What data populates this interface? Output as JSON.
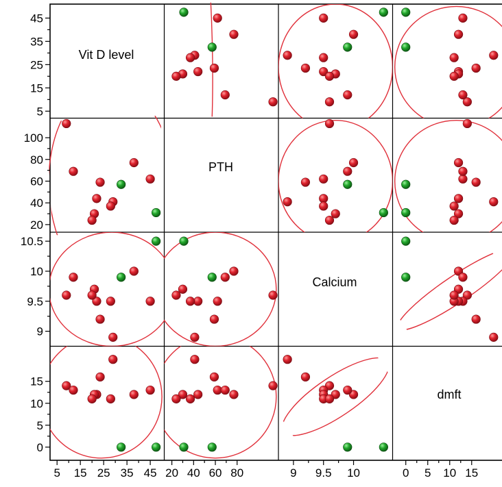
{
  "chart_data": {
    "type": "scatter",
    "title": "",
    "variables": [
      {
        "name": "Vit D level",
        "ticks": [
          "5",
          "15",
          "25",
          "35",
          "45"
        ],
        "x_ticks": [
          "5",
          "15",
          "25",
          "35",
          "45"
        ],
        "tick_values": [
          5,
          15,
          25,
          35,
          45
        ],
        "x_tick_values": [
          5,
          15,
          25,
          35,
          45
        ],
        "range": [
          2,
          51
        ]
      },
      {
        "name": "PTH",
        "ticks": [
          "20",
          "40",
          "60",
          "80",
          "100"
        ],
        "x_ticks": [
          "20",
          "40",
          "60",
          "80"
        ],
        "tick_values": [
          20,
          40,
          60,
          80,
          100
        ],
        "x_tick_values": [
          20,
          40,
          60,
          80
        ],
        "range": [
          13,
          118
        ]
      },
      {
        "name": "Calcium",
        "ticks": [
          "9",
          "9.5",
          "10",
          "10.5"
        ],
        "x_ticks": [
          "9",
          "9.5",
          "10"
        ],
        "tick_values": [
          9,
          9.5,
          10,
          10.5
        ],
        "x_tick_values": [
          9,
          9.5,
          10
        ],
        "range": [
          8.75,
          10.65
        ]
      },
      {
        "name": "dmft",
        "ticks": [
          "0",
          "5",
          "10",
          "15"
        ],
        "x_ticks": [
          "0",
          "5",
          "10",
          "15"
        ],
        "tick_values": [
          0,
          5,
          10,
          15
        ],
        "x_tick_values": [
          0,
          5,
          10,
          15
        ],
        "range": [
          -3,
          23
        ]
      }
    ],
    "points": [
      {
        "vitd": 47.5,
        "pth": 31,
        "calcium": 10.5,
        "dmft": 0,
        "group": "green"
      },
      {
        "vitd": 32.5,
        "pth": 57,
        "calcium": 9.9,
        "dmft": 0,
        "group": "green"
      },
      {
        "vitd": 9,
        "pth": 113,
        "calcium": 9.6,
        "dmft": 14,
        "group": "red"
      },
      {
        "vitd": 45,
        "pth": 62,
        "calcium": 9.5,
        "dmft": 13,
        "group": "red"
      },
      {
        "vitd": 38,
        "pth": 77,
        "calcium": 10.0,
        "dmft": 12,
        "group": "red"
      },
      {
        "vitd": 12,
        "pth": 69,
        "calcium": 9.9,
        "dmft": 13,
        "group": "red"
      },
      {
        "vitd": 23.5,
        "pth": 59,
        "calcium": 9.2,
        "dmft": 16,
        "group": "red"
      },
      {
        "vitd": 22,
        "pth": 44,
        "calcium": 9.5,
        "dmft": 12,
        "group": "red"
      },
      {
        "vitd": 29,
        "pth": 41,
        "calcium": 8.9,
        "dmft": 20,
        "group": "red"
      },
      {
        "vitd": 28,
        "pth": 37,
        "calcium": 9.5,
        "dmft": 11,
        "group": "red"
      },
      {
        "vitd": 21,
        "pth": 30,
        "calcium": 9.7,
        "dmft": 12,
        "group": "red"
      },
      {
        "vitd": 20,
        "pth": 24,
        "calcium": 9.6,
        "dmft": 11,
        "group": "red"
      }
    ],
    "point_colors": {
      "red": "#d8222e",
      "green": "#1e9e2a"
    },
    "ellipse_color": "#e0303a",
    "ellipses": [
      {
        "row": 0,
        "col": 1,
        "cx": 28.5,
        "cy": 54,
        "rx": 27,
        "ry": 96,
        "rot": -3
      },
      {
        "row": 0,
        "col": 2,
        "cx": 9.7,
        "cy": 24,
        "rx": 0.95,
        "ry": 27,
        "rot": 0
      },
      {
        "row": 0,
        "col": 3,
        "cx": 11.5,
        "cy": 24,
        "rx": 14,
        "ry": 26,
        "rot": 0
      },
      {
        "row": 1,
        "col": 0,
        "cx": 28.5,
        "cy": 54,
        "rx": 27,
        "ry": 96,
        "rot": -3
      },
      {
        "row": 1,
        "col": 2,
        "cx": 9.7,
        "cy": 60,
        "rx": 0.95,
        "ry": 56,
        "rot": 0
      },
      {
        "row": 1,
        "col": 3,
        "cx": 11.5,
        "cy": 60,
        "rx": 14,
        "ry": 56,
        "rot": 0
      },
      {
        "row": 2,
        "col": 0,
        "cx": 28.5,
        "cy": 9.7,
        "rx": 27,
        "ry": 0.95,
        "rot": 0
      },
      {
        "row": 2,
        "col": 1,
        "cx": 60,
        "cy": 9.7,
        "rx": 56,
        "ry": 0.95,
        "rot": 0
      },
      {
        "row": 2,
        "col": 3,
        "cx": 11.5,
        "cy": 9.7,
        "rx": 16,
        "ry": 0.22,
        "rot": -34
      },
      {
        "row": 3,
        "col": 0,
        "cx": 24,
        "cy": 11.5,
        "rx": 26,
        "ry": 14,
        "rot": 0
      },
      {
        "row": 3,
        "col": 1,
        "cx": 60,
        "cy": 11.5,
        "rx": 56,
        "ry": 14,
        "rot": 0
      },
      {
        "row": 3,
        "col": 2,
        "cx": 9.7,
        "cy": 11.5,
        "rx": 1.05,
        "ry": 4.5,
        "rot": -34
      }
    ]
  }
}
